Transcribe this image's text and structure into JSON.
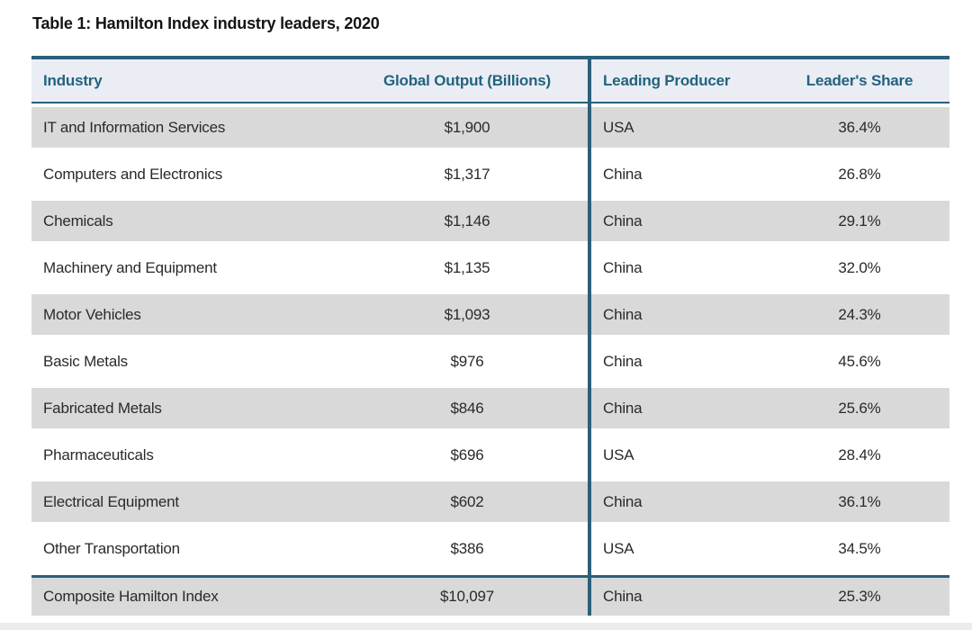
{
  "title": "Table 1: Hamilton Index industry leaders, 2020",
  "table": {
    "columns": {
      "industry": "Industry",
      "output": "Global Output (Billions)",
      "producer": "Leading Producer",
      "share": "Leader's Share"
    },
    "rows": [
      {
        "industry": "IT and Information Services",
        "output": "$1,900",
        "producer": "USA",
        "share": "36.4%"
      },
      {
        "industry": "Computers and Electronics",
        "output": "$1,317",
        "producer": "China",
        "share": "26.8%"
      },
      {
        "industry": "Chemicals",
        "output": "$1,146",
        "producer": "China",
        "share": "29.1%"
      },
      {
        "industry": "Machinery and Equipment",
        "output": "$1,135",
        "producer": "China",
        "share": "32.0%"
      },
      {
        "industry": "Motor Vehicles",
        "output": "$1,093",
        "producer": "China",
        "share": "24.3%"
      },
      {
        "industry": "Basic Metals",
        "output": "$976",
        "producer": "China",
        "share": "45.6%"
      },
      {
        "industry": "Fabricated Metals",
        "output": "$846",
        "producer": "China",
        "share": "25.6%"
      },
      {
        "industry": "Pharmaceuticals",
        "output": "$696",
        "producer": "USA",
        "share": "28.4%"
      },
      {
        "industry": "Electrical Equipment",
        "output": "$602",
        "producer": "China",
        "share": "36.1%"
      },
      {
        "industry": "Other Transportation",
        "output": "$386",
        "producer": "USA",
        "share": "34.5%"
      },
      {
        "industry": "Composite Hamilton Index",
        "output": "$10,097",
        "producer": "China",
        "share": "25.3%",
        "composite": true
      }
    ]
  },
  "colors": {
    "accent_teal": "#2b607a",
    "header_text": "#21637f",
    "header_bg": "#eaedf4",
    "row_gray": "#d9d9d9",
    "body_text": "#2b2a28"
  }
}
